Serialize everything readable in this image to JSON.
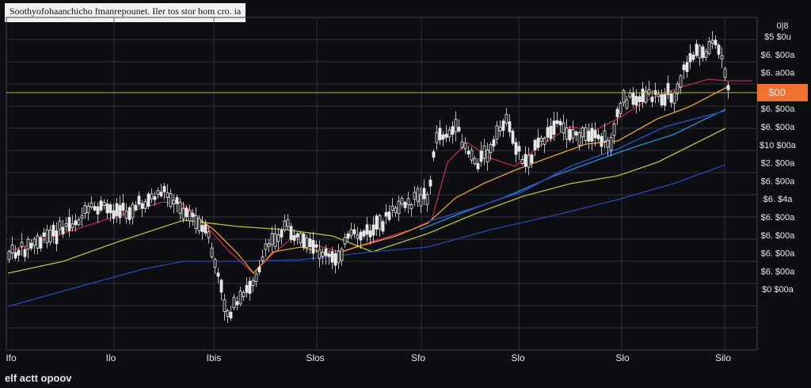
{
  "title": "Soothyofohaanchicho fmanrepounet. Iler tos stor bom cro. ia",
  "footer": "elf actt opoov",
  "colors": {
    "background": "#0d0e12",
    "grid": "#3a3d4a",
    "candle": "#e8e8e8",
    "hline": "#b7b34a",
    "price_tag": "#f07030",
    "ma_red": "#c0284a",
    "ma_orange": "#e8a030",
    "ma_olive": "#b8c040",
    "ma_blue": "#2848b0",
    "ma_light_blue": "#2090d0"
  },
  "chart_data": {
    "type": "candlestick",
    "y_axis_labels": [
      "$5 $0u",
      "$6. $00a",
      "$6. a00a",
      "$6. $00a",
      "$6. $00a",
      "$6. $00a",
      "$10 $00a",
      "$2. $00a",
      "$6. $00a",
      "$6. $4a",
      "$6. $00a",
      "$6. $00a",
      "$6. $00a",
      "$6. $00a",
      "$0 $00a"
    ],
    "y_axis_top": "0|8",
    "price_tag": "$00",
    "x_axis_labels": [
      "Ifo",
      "Ilo",
      "Ibis",
      "Slos",
      "Sfo",
      "Slo",
      "Slo",
      "Silo"
    ],
    "grid": true,
    "horizontal_level": 117
  }
}
